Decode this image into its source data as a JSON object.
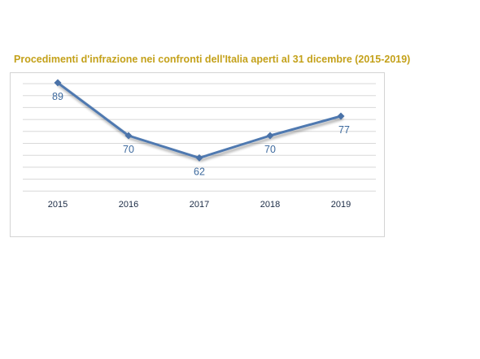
{
  "chart_data": {
    "type": "line",
    "title": "Procedimenti d'infrazione nei confronti dell'Italia aperti al 31 dicembre (2015-2019)",
    "xlabel": "",
    "ylabel": "",
    "categories": [
      "2015",
      "2016",
      "2017",
      "2018",
      "2019"
    ],
    "series": [
      {
        "values": [
          89,
          70,
          62,
          70,
          77
        ]
      }
    ],
    "ylim": [
      49,
      91
    ],
    "grid": true,
    "data_labels": true,
    "legend": "none",
    "colors": {
      "title": "#c4a11a",
      "line": "#4f79b0",
      "marker": "#4a72a8",
      "data_label": "#3e6a9e",
      "tick_label": "#1a2a44",
      "gridline": "#d8d8d8"
    }
  }
}
